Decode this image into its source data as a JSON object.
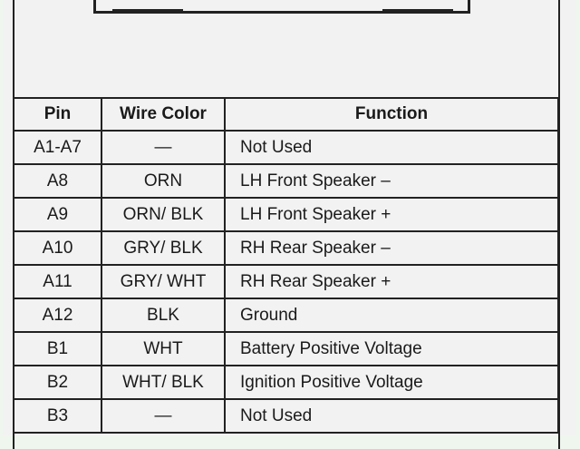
{
  "table": {
    "headers": {
      "pin": "Pin",
      "wire_color": "Wire Color",
      "function": "Function"
    },
    "rows": [
      {
        "pin": "A1-A7",
        "wire_color": "—",
        "function": "Not Used"
      },
      {
        "pin": "A8",
        "wire_color": "ORN",
        "function": "LH Front Speaker –"
      },
      {
        "pin": "A9",
        "wire_color": "ORN/ BLK",
        "function": "LH Front Speaker +"
      },
      {
        "pin": "A10",
        "wire_color": "GRY/ BLK",
        "function": "RH Rear Speaker –"
      },
      {
        "pin": "A11",
        "wire_color": "GRY/ WHT",
        "function": "RH Rear Speaker +"
      },
      {
        "pin": "A12",
        "wire_color": "BLK",
        "function": "Ground"
      },
      {
        "pin": "B1",
        "wire_color": "WHT",
        "function": "Battery Positive Voltage"
      },
      {
        "pin": "B2",
        "wire_color": "WHT/ BLK",
        "function": "Ignition Positive Voltage"
      },
      {
        "pin": "B3",
        "wire_color": "—",
        "function": "Not Used"
      }
    ]
  }
}
